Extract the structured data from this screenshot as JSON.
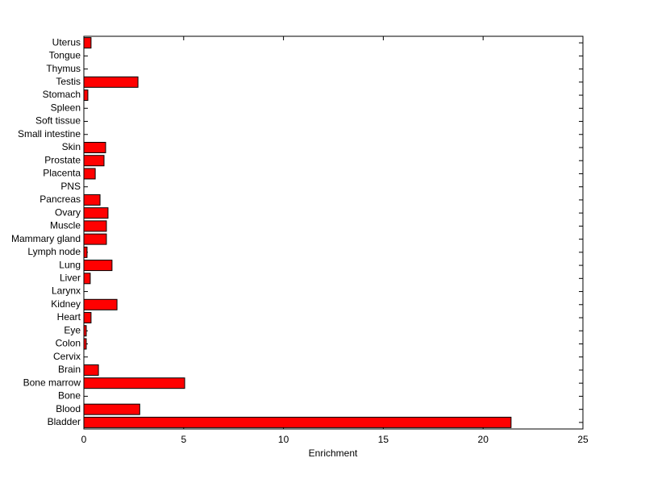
{
  "chart_data": {
    "type": "barh",
    "xlabel": "Enrichment",
    "categories": [
      "Bladder",
      "Blood",
      "Bone",
      "Bone marrow",
      "Brain",
      "Cervix",
      "Colon",
      "Eye",
      "Heart",
      "Kidney",
      "Larynx",
      "Liver",
      "Lung",
      "Lymph node",
      "Mammary gland",
      "Muscle",
      "Ovary",
      "Pancreas",
      "PNS",
      "Placenta",
      "Prostate",
      "Skin",
      "Small intestine",
      "Soft tissue",
      "Spleen",
      "Stomach",
      "Testis",
      "Thymus",
      "Tongue",
      "Uterus"
    ],
    "values": [
      21.4,
      2.8,
      0,
      5.05,
      0.73,
      0,
      0.12,
      0.12,
      0.36,
      1.66,
      0,
      0.32,
      1.41,
      0.16,
      1.13,
      1.13,
      1.21,
      0.81,
      0,
      0.57,
      1.01,
      1.09,
      0,
      0,
      0,
      0.2,
      2.71,
      0,
      0,
      0.36
    ],
    "color": "#ff0000",
    "xlim": [
      0,
      25
    ],
    "xticks": [
      0,
      5,
      10,
      15,
      20,
      25
    ]
  }
}
